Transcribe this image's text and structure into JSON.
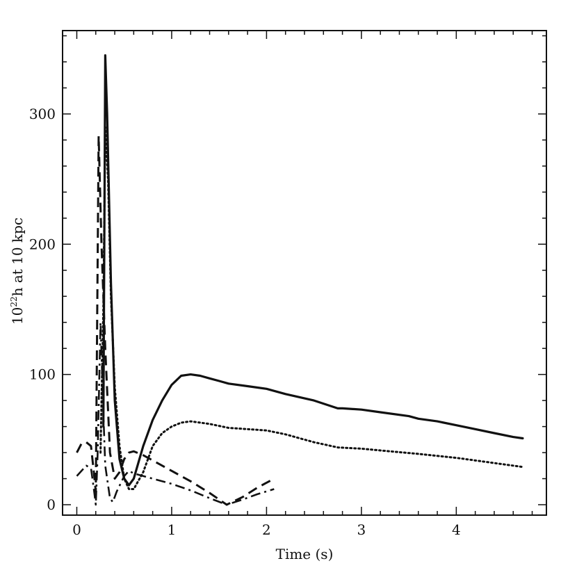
{
  "chart_data": {
    "type": "line",
    "title": "",
    "xlabel": "Time (s)",
    "ylabel": {
      "prefix": "10",
      "exponent": "22",
      "rest": "h at 10 kpc"
    },
    "xlim": [
      -0.15,
      4.95
    ],
    "ylim": [
      -8,
      364
    ],
    "xticks": [
      0,
      1,
      2,
      3,
      4
    ],
    "yticks": [
      0,
      100,
      200,
      300
    ],
    "x_minor_step": 0.2,
    "y_minor_step": 20,
    "grid": false,
    "series": [
      {
        "style": "solid",
        "points": [
          [
            0.28,
            60
          ],
          [
            0.3,
            345
          ],
          [
            0.32,
            300
          ],
          [
            0.36,
            170
          ],
          [
            0.4,
            80
          ],
          [
            0.45,
            35
          ],
          [
            0.5,
            20
          ],
          [
            0.55,
            15
          ],
          [
            0.6,
            20
          ],
          [
            0.7,
            45
          ],
          [
            0.8,
            65
          ],
          [
            0.9,
            80
          ],
          [
            1.0,
            92
          ],
          [
            1.1,
            99
          ],
          [
            1.2,
            100
          ],
          [
            1.3,
            99
          ],
          [
            1.4,
            97
          ],
          [
            1.5,
            95
          ],
          [
            1.6,
            93
          ],
          [
            1.8,
            91
          ],
          [
            2.0,
            89
          ],
          [
            2.2,
            85
          ],
          [
            2.5,
            80
          ],
          [
            2.75,
            74
          ],
          [
            2.8,
            74
          ],
          [
            3.0,
            73
          ],
          [
            3.2,
            71
          ],
          [
            3.5,
            68
          ],
          [
            3.6,
            66
          ],
          [
            3.8,
            64
          ],
          [
            4.0,
            61
          ],
          [
            4.2,
            58
          ],
          [
            4.4,
            55
          ],
          [
            4.6,
            52
          ],
          [
            4.7,
            51
          ]
        ]
      },
      {
        "style": "dotted",
        "points": [
          [
            0.25,
            40
          ],
          [
            0.28,
            150
          ],
          [
            0.3,
            290
          ],
          [
            0.33,
            250
          ],
          [
            0.36,
            160
          ],
          [
            0.4,
            90
          ],
          [
            0.45,
            45
          ],
          [
            0.5,
            20
          ],
          [
            0.55,
            12
          ],
          [
            0.6,
            12
          ],
          [
            0.7,
            25
          ],
          [
            0.8,
            45
          ],
          [
            0.9,
            55
          ],
          [
            1.0,
            60
          ],
          [
            1.1,
            63
          ],
          [
            1.2,
            64
          ],
          [
            1.4,
            62
          ],
          [
            1.6,
            59
          ],
          [
            1.8,
            58
          ],
          [
            2.0,
            57
          ],
          [
            2.2,
            54
          ],
          [
            2.5,
            48
          ],
          [
            2.75,
            44
          ],
          [
            3.0,
            43
          ],
          [
            3.3,
            41
          ],
          [
            3.6,
            39
          ],
          [
            4.0,
            36
          ],
          [
            4.3,
            33
          ],
          [
            4.7,
            29
          ]
        ]
      },
      {
        "style": "dashed",
        "points": [
          [
            0.0,
            40
          ],
          [
            0.05,
            47
          ],
          [
            0.1,
            48
          ],
          [
            0.15,
            45
          ],
          [
            0.18,
            25
          ],
          [
            0.2,
            10
          ],
          [
            0.23,
            283
          ],
          [
            0.26,
            200
          ],
          [
            0.3,
            120
          ],
          [
            0.35,
            40
          ],
          [
            0.4,
            20
          ],
          [
            0.45,
            25
          ],
          [
            0.5,
            35
          ],
          [
            0.55,
            40
          ],
          [
            0.6,
            41
          ],
          [
            0.7,
            38
          ],
          [
            0.8,
            34
          ],
          [
            1.0,
            26
          ],
          [
            1.2,
            18
          ],
          [
            1.4,
            9
          ],
          [
            1.58,
            0
          ],
          [
            1.75,
            6
          ],
          [
            1.9,
            13
          ],
          [
            2.08,
            20
          ]
        ]
      },
      {
        "style": "dashdot",
        "points": [
          [
            0.0,
            22
          ],
          [
            0.05,
            26
          ],
          [
            0.1,
            30
          ],
          [
            0.15,
            28
          ],
          [
            0.18,
            12
          ],
          [
            0.2,
            0
          ],
          [
            0.22,
            40
          ],
          [
            0.25,
            140
          ],
          [
            0.28,
            70
          ],
          [
            0.3,
            30
          ],
          [
            0.35,
            5
          ],
          [
            0.38,
            2
          ],
          [
            0.42,
            10
          ],
          [
            0.5,
            22
          ],
          [
            0.55,
            26
          ],
          [
            0.6,
            24
          ],
          [
            0.8,
            20
          ],
          [
            1.0,
            16
          ],
          [
            1.2,
            11
          ],
          [
            1.4,
            5
          ],
          [
            1.58,
            0
          ],
          [
            1.75,
            4
          ],
          [
            1.9,
            8
          ],
          [
            2.08,
            12
          ]
        ]
      }
    ]
  }
}
